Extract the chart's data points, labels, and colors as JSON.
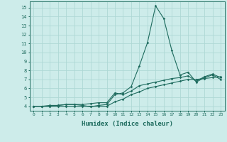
{
  "xlabel": "Humidex (Indice chaleur)",
  "x_ticks": [
    0,
    1,
    2,
    3,
    4,
    5,
    6,
    7,
    8,
    9,
    10,
    11,
    12,
    13,
    14,
    15,
    16,
    17,
    18,
    19,
    20,
    21,
    22,
    23
  ],
  "ylim": [
    3.5,
    15.7
  ],
  "xlim": [
    -0.5,
    23.5
  ],
  "yticks": [
    4,
    5,
    6,
    7,
    8,
    9,
    10,
    11,
    12,
    13,
    14,
    15
  ],
  "background_color": "#cdecea",
  "grid_color": "#aed8d5",
  "line_color": "#1e6b5e",
  "series1_x": [
    0,
    1,
    2,
    3,
    4,
    5,
    6,
    7,
    8,
    9,
    10,
    11,
    12,
    13,
    14,
    15,
    16,
    17,
    18,
    19,
    20,
    21,
    22,
    23
  ],
  "series1_y": [
    4.0,
    4.0,
    4.1,
    4.1,
    4.2,
    4.2,
    4.1,
    3.95,
    4.1,
    4.2,
    5.3,
    5.5,
    6.2,
    8.5,
    11.1,
    15.2,
    13.8,
    10.2,
    7.5,
    7.8,
    6.7,
    7.2,
    7.5,
    7.0
  ],
  "series2_x": [
    0,
    1,
    2,
    3,
    4,
    5,
    6,
    7,
    8,
    9,
    10,
    11,
    12,
    13,
    14,
    15,
    16,
    17,
    18,
    19,
    20,
    21,
    22,
    23
  ],
  "series2_y": [
    4.0,
    4.0,
    4.0,
    4.1,
    4.2,
    4.2,
    4.2,
    4.3,
    4.4,
    4.4,
    5.5,
    5.3,
    5.7,
    6.3,
    6.5,
    6.7,
    6.9,
    7.1,
    7.2,
    7.4,
    6.8,
    7.3,
    7.6,
    7.2
  ],
  "series3_x": [
    0,
    1,
    2,
    3,
    4,
    5,
    6,
    7,
    8,
    9,
    10,
    11,
    12,
    13,
    14,
    15,
    16,
    17,
    18,
    19,
    20,
    21,
    22,
    23
  ],
  "series3_y": [
    4.0,
    4.0,
    4.0,
    4.0,
    4.0,
    4.0,
    4.0,
    4.0,
    4.0,
    4.0,
    4.5,
    4.8,
    5.3,
    5.6,
    6.0,
    6.2,
    6.4,
    6.6,
    6.8,
    7.0,
    7.0,
    7.1,
    7.2,
    7.3
  ]
}
